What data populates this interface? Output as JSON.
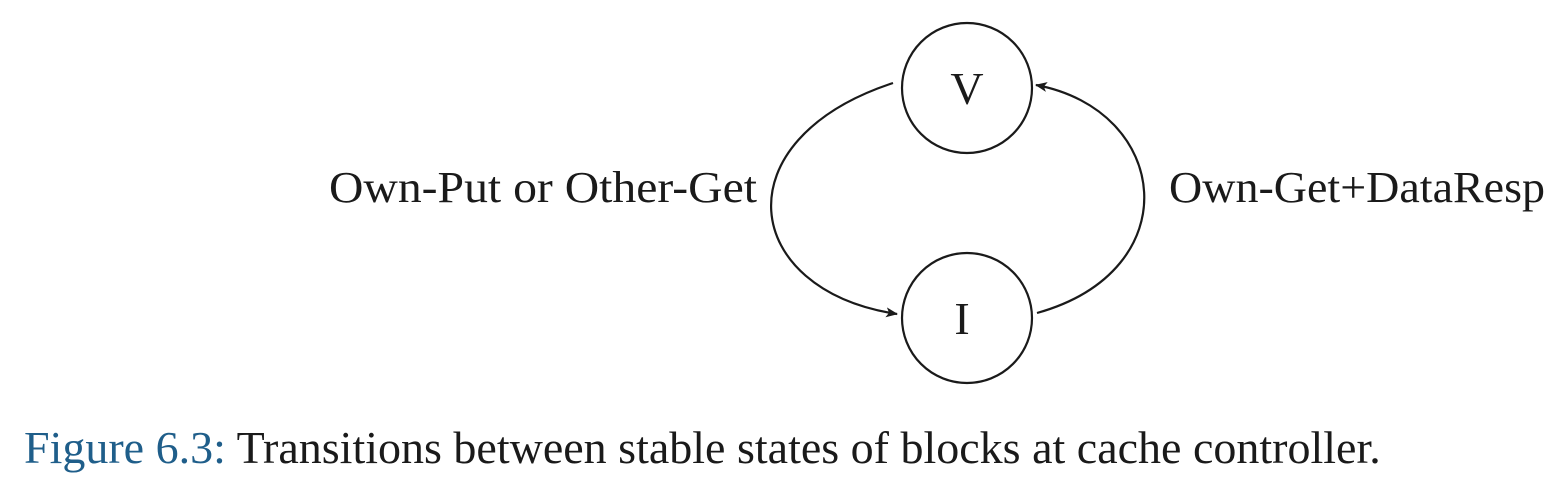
{
  "diagram": {
    "states": {
      "v": "V",
      "i": "I"
    },
    "transitions": {
      "v_to_i": "Own-Put or Other-Get",
      "i_to_v": "Own-Get+DataResp"
    }
  },
  "caption": {
    "number": "Figure 6.3:",
    "text": "Transitions between stable states of blocks at cache controller."
  },
  "colors": {
    "caption_number": "#1f5e8a",
    "ink": "#1a1a1a"
  }
}
